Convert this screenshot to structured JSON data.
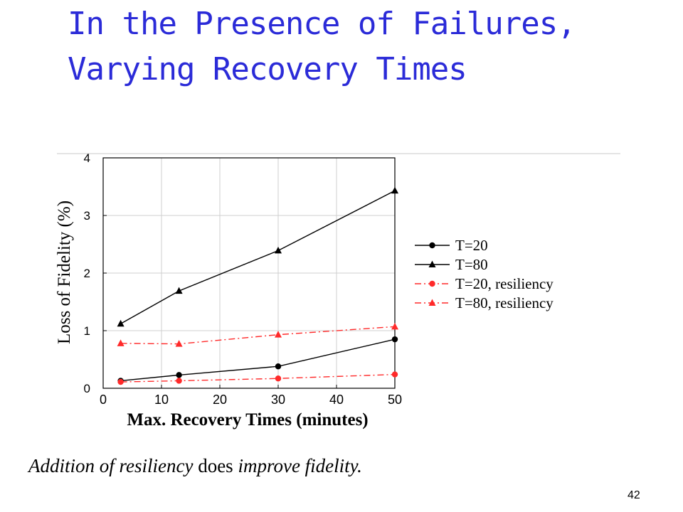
{
  "slide": {
    "title_line1": "In the Presence of Failures,",
    "title_line2": "Varying  Recovery Times",
    "title_color": "#2b2bd8",
    "caption_part1": "Addition of resiliency",
    "caption_part2": " does ",
    "caption_part3": "improve fidelity.",
    "page_number": "42"
  },
  "chart_data": {
    "type": "line",
    "xlabel": "Max. Recovery Times (minutes)",
    "ylabel": "Loss of Fidelity (%)",
    "xlim": [
      0,
      50
    ],
    "ylim": [
      0,
      4
    ],
    "xticks": [
      "0",
      "10",
      "20",
      "30",
      "40",
      "50"
    ],
    "yticks": [
      "0",
      "1",
      "2",
      "3",
      "4"
    ],
    "grid": true,
    "legend_position": "right",
    "x": [
      3,
      13,
      30,
      50
    ],
    "series": [
      {
        "name": "T=20",
        "values": [
          0.13,
          0.23,
          0.38,
          0.85
        ],
        "color": "#000000",
        "marker": "circle",
        "dash": "solid"
      },
      {
        "name": "T=80",
        "values": [
          1.12,
          1.69,
          2.39,
          3.43
        ],
        "color": "#000000",
        "marker": "triangle",
        "dash": "solid"
      },
      {
        "name": "T=20, resiliency",
        "values": [
          0.11,
          0.13,
          0.17,
          0.24
        ],
        "color": "#ff2a2a",
        "marker": "circle",
        "dash": "dashdot"
      },
      {
        "name": "T=80, resiliency",
        "values": [
          0.78,
          0.77,
          0.93,
          1.07
        ],
        "color": "#ff2a2a",
        "marker": "triangle",
        "dash": "dashdot"
      }
    ]
  }
}
